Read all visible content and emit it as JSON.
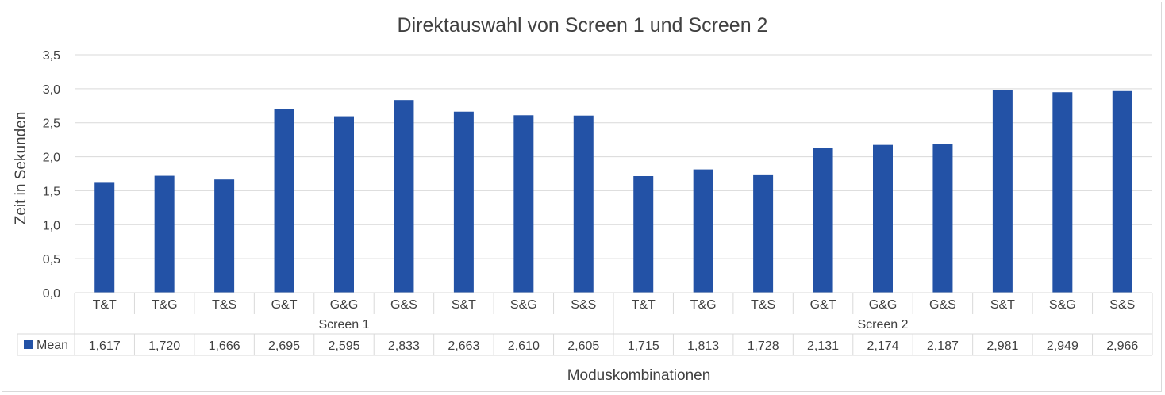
{
  "chart_data": {
    "type": "bar",
    "title": "Direktauswahl von Screen 1 und Screen 2",
    "xlabel": "Moduskombinationen",
    "ylabel": "Zeit in Sekunden",
    "ylim": [
      0,
      3.5
    ],
    "ytick_step": 0.5,
    "ytick_labels": [
      "0,0",
      "0,5",
      "1,0",
      "1,5",
      "2,0",
      "2,5",
      "3,0",
      "3,5"
    ],
    "grid": true,
    "groups": [
      {
        "name": "Screen 1",
        "categories": [
          "T&T",
          "T&G",
          "T&S",
          "G&T",
          "G&G",
          "G&S",
          "S&T",
          "S&G",
          "S&S"
        ]
      },
      {
        "name": "Screen 2",
        "categories": [
          "T&T",
          "T&G",
          "T&S",
          "G&T",
          "G&G",
          "G&S",
          "S&T",
          "S&G",
          "S&S"
        ]
      }
    ],
    "series": [
      {
        "name": "Mean",
        "color": "#2352a6",
        "values": [
          1.617,
          1.72,
          1.666,
          2.695,
          2.595,
          2.833,
          2.663,
          2.61,
          2.605,
          1.715,
          1.813,
          1.728,
          2.131,
          2.174,
          2.187,
          2.981,
          2.949,
          2.966
        ],
        "value_labels": [
          "1,617",
          "1,720",
          "1,666",
          "2,695",
          "2,595",
          "2,833",
          "2,663",
          "2,610",
          "2,605",
          "1,715",
          "1,813",
          "1,728",
          "2,131",
          "2,174",
          "2,187",
          "2,981",
          "2,949",
          "2,966"
        ]
      }
    ],
    "legend": "data-table"
  }
}
